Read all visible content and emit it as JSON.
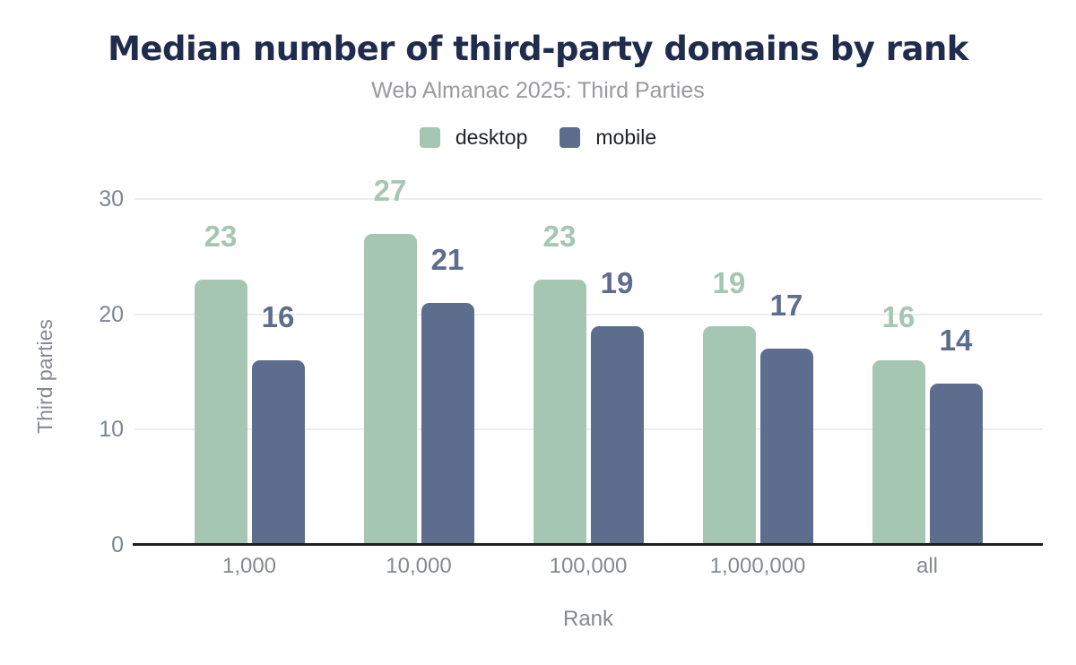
{
  "title": "Median number of third-party domains by rank",
  "subtitle": "Web Almanac 2025: Third Parties",
  "legend": [
    {
      "label": "desktop",
      "series_key": "desktop"
    },
    {
      "label": "mobile",
      "series_key": "mobile"
    }
  ],
  "colors": {
    "title": "#1f2c4d",
    "subtitle": "#9a9a9e",
    "desktop": "#a5c6b2",
    "mobile": "#5d6d8e",
    "grid": "#ededed",
    "axis_line": "#1e1e1e",
    "tick_label": "#7d8692",
    "axis_title": "#85898f",
    "legend_text": "#212329"
  },
  "chart_data": {
    "type": "bar",
    "title": "Median number of third-party domains by rank",
    "subtitle": "Web Almanac 2025: Third Parties",
    "categories": [
      "1,000",
      "10,000",
      "100,000",
      "1,000,000",
      "all"
    ],
    "series": [
      {
        "name": "desktop",
        "values": [
          23,
          27,
          23,
          19,
          16
        ]
      },
      {
        "name": "mobile",
        "values": [
          16,
          21,
          19,
          17,
          14
        ]
      }
    ],
    "xlabel": "Rank",
    "ylabel": "Third parties",
    "yticks": [
      0,
      10,
      20,
      30
    ],
    "ylim": [
      0,
      30
    ],
    "grid": true,
    "legend_position": "top",
    "data_labels": true
  }
}
